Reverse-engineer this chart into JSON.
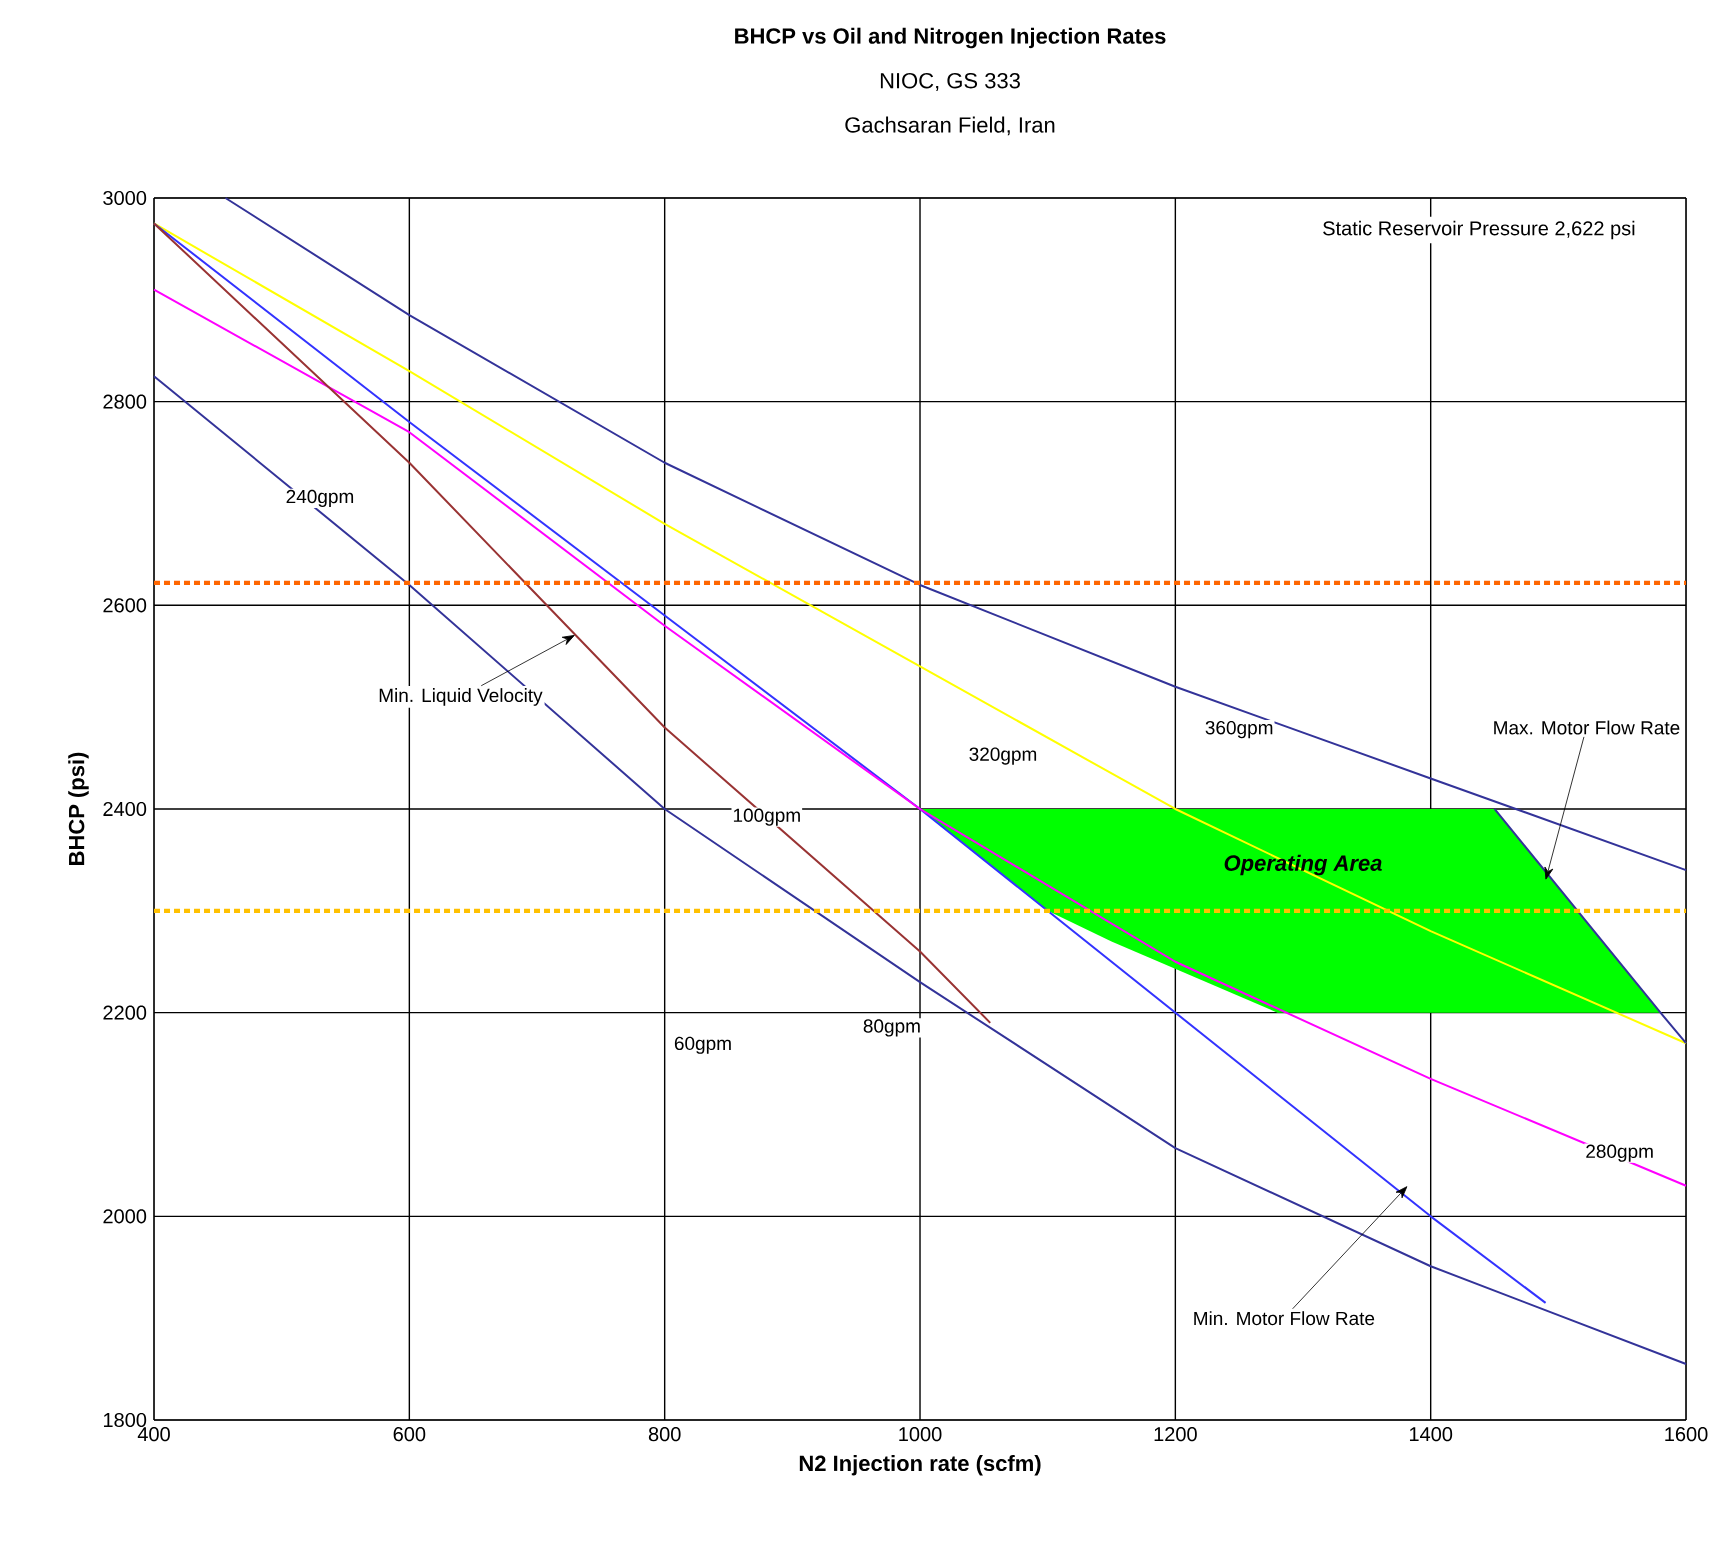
{
  "chart_data": {
    "type": "line",
    "title": "BHCP vs Oil and Nitrogen Injection Rates",
    "subtitle": "NIOC, GS 333",
    "xlabel": "N2 Injection rate (scfm)",
    "ylabel": "BHCP (psi)",
    "xlim": [
      400,
      1600
    ],
    "ylim": [
      1800,
      3000
    ],
    "xticks": [
      400,
      600,
      800,
      1000,
      1200,
      1400,
      1600
    ],
    "yticks": [
      1800,
      2000,
      2200,
      2400,
      2600,
      2800,
      3000
    ],
    "grid": true,
    "marker": "none",
    "line_style": "solid",
    "series": [
      {
        "type": "area",
        "color": "#00ff00",
        "x": [
          1000,
          1450,
          1580,
          1280,
          1150,
          1100,
          1000
        ],
        "values": [
          2400,
          2400,
          2200,
          2200,
          2270,
          2300,
          2400
        ]
      },
      {
        "color": "#333399",
        "x": [
          456,
          600,
          800,
          1000,
          1200,
          1400,
          1600
        ],
        "values": [
          3000,
          2885,
          2740,
          2620,
          2520,
          2430,
          2340
        ]
      },
      {
        "color": "#ffff00",
        "x": [
          400,
          600,
          800,
          1000,
          1200,
          1400,
          1600
        ],
        "values": [
          2975,
          2830,
          2680,
          2540,
          2400,
          2280,
          2170
        ]
      },
      {
        "color": "#3333ff",
        "x": [
          400,
          600,
          800,
          1000,
          1200,
          1400,
          1490
        ],
        "values": [
          2975,
          2780,
          2590,
          2400,
          2200,
          2000,
          1915
        ]
      },
      {
        "color": "#ff00ff",
        "x": [
          400,
          600,
          800,
          1000,
          1200,
          1400,
          1600
        ],
        "values": [
          2910,
          2770,
          2580,
          2400,
          2250,
          2135,
          2030
        ]
      },
      {
        "color": "#993333",
        "x": [
          400,
          600,
          800,
          1000,
          1055
        ],
        "values": [
          2975,
          2740,
          2480,
          2260,
          2190
        ]
      },
      {
        "color": "#333399",
        "x": [
          400,
          600,
          800,
          1000,
          1200,
          1400,
          1600
        ],
        "values": [
          2825,
          2620,
          2400,
          2230,
          2067,
          1951,
          1855
        ]
      },
      {
        "color": "#333399",
        "x": [
          1450,
          1580,
          1600
        ],
        "values": [
          2400,
          2200,
          2170
        ]
      }
    ],
    "ref_lines": [
      {
        "axis": "y",
        "value": 2622,
        "color": "#ff6600",
        "line_style": "dotted"
      },
      {
        "axis": "y",
        "value": 2300,
        "color": "#ffc000",
        "line_style": "dotted"
      }
    ],
    "annotations": [
      "Gachsaran Field, Iran",
      "Static Reservoir Pressure 2,622 psi",
      "240gpm",
      "360gpm",
      "320gpm",
      "100gpm",
      "60gpm",
      "80gpm",
      "280gpm",
      "Operating Area",
      {
        "text": "Min. Liquid Velocity",
        "x": 730,
        "y": 2571
      },
      {
        "text": "Max. Motor Flow Rate",
        "x": 1490,
        "y": 2330
      },
      {
        "text": "Min. Motor Flow Rate",
        "x": 1382,
        "y": 2030
      }
    ]
  }
}
